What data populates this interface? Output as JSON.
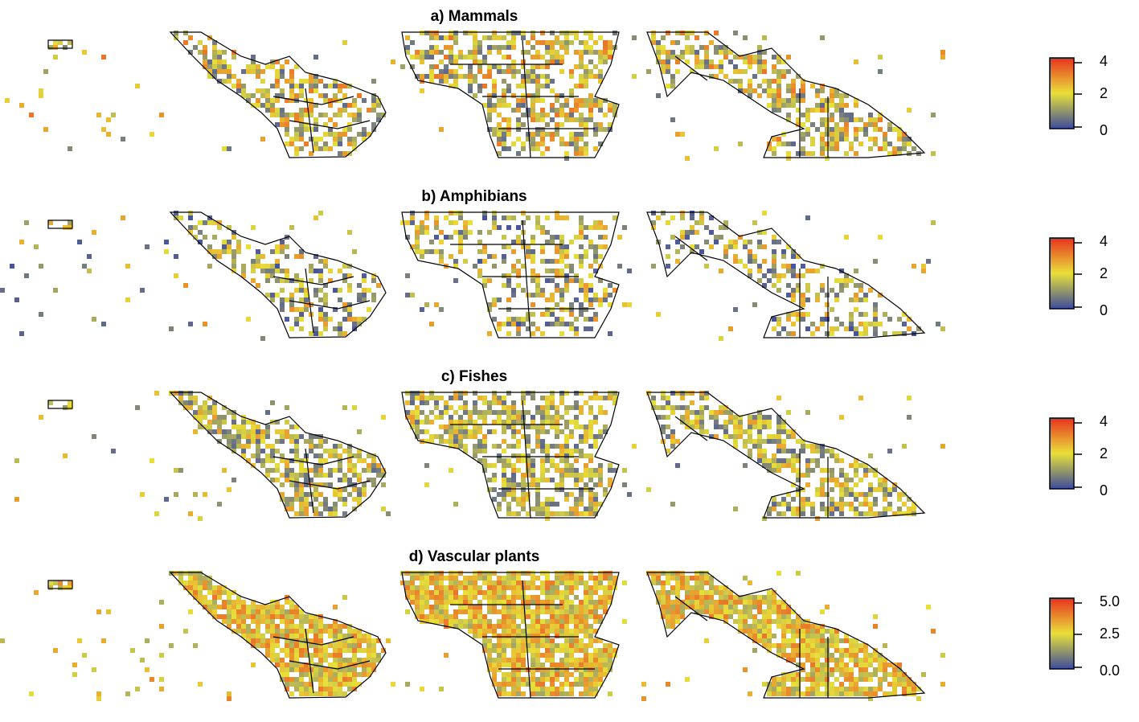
{
  "panels": [
    {
      "title": "a) Mammals",
      "legend_ticks": [
        "4",
        "2",
        "0"
      ]
    },
    {
      "title": "b) Amphibians",
      "legend_ticks": [
        "4",
        "2",
        "0"
      ]
    },
    {
      "title": "c) Fishes",
      "legend_ticks": [
        "4",
        "2",
        "0"
      ]
    },
    {
      "title": "d) Vascular plants",
      "legend_ticks": [
        "5.0",
        "2.5",
        "0.0"
      ]
    }
  ],
  "colors": {
    "scale_low": "#3b4aa0",
    "scale_mid": "#e8e03a",
    "scale_high": "#e8321e",
    "boundary": "#000000"
  }
}
